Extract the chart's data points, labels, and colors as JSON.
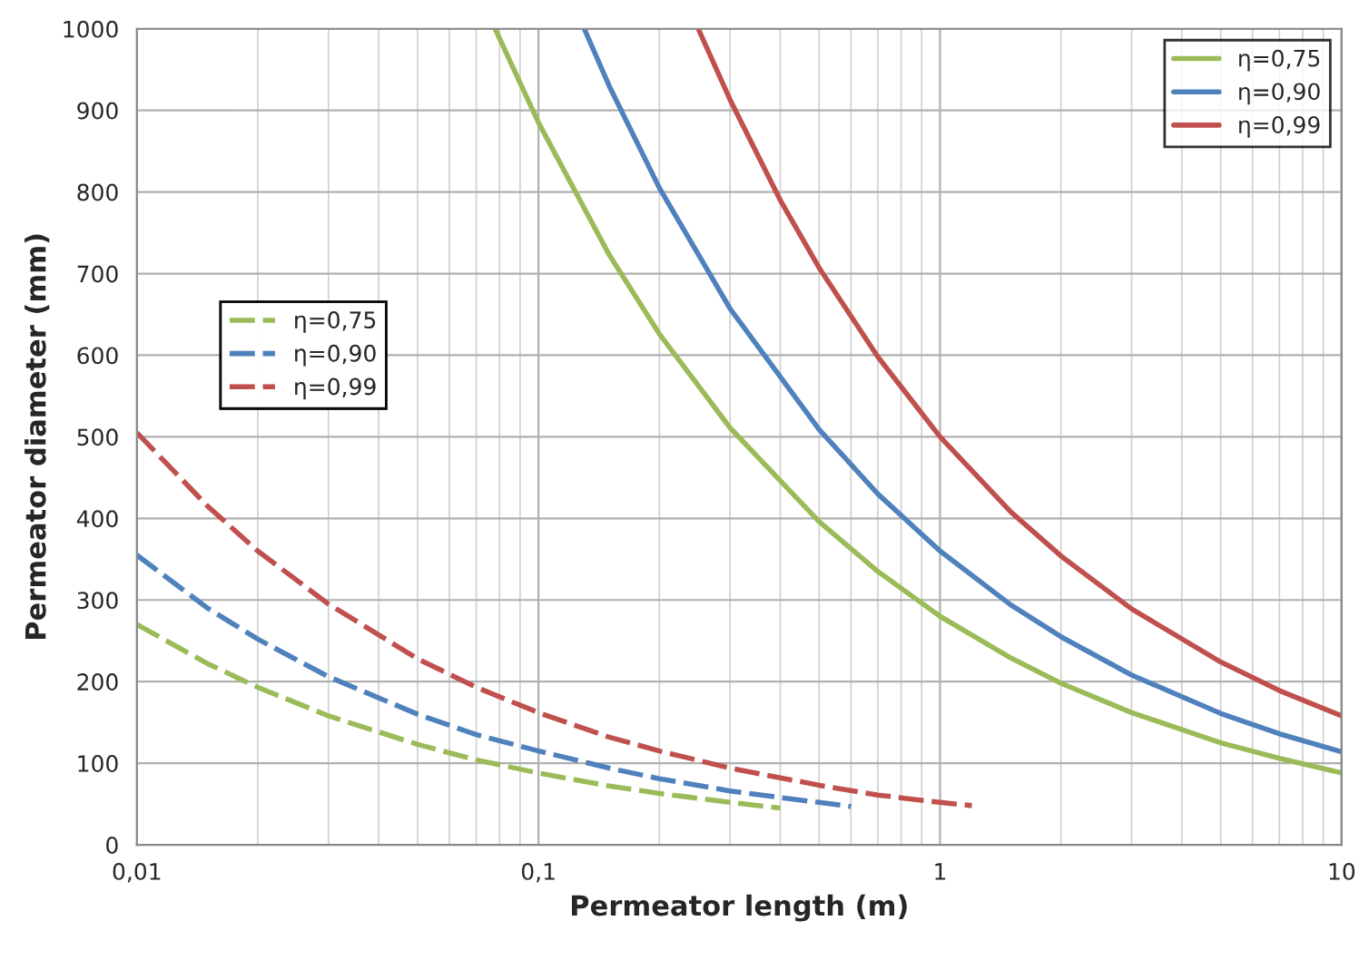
{
  "chart_data": {
    "type": "line",
    "xlabel": "Permeator length (m)",
    "ylabel": "Permeator diameter (mm)",
    "log": "x",
    "xlim": [
      0.01,
      10
    ],
    "ylim": [
      0,
      1000
    ],
    "xticks": [
      {
        "value": 0.01,
        "label": "0,01"
      },
      {
        "value": 0.1,
        "label": "0,1"
      },
      1,
      10
    ],
    "yticks": [
      0,
      100,
      200,
      300,
      400,
      500,
      600,
      700,
      800,
      900,
      1000
    ],
    "grid": true,
    "legend": "top right",
    "marker": "none",
    "series": [
      {
        "name": "η=0,75",
        "color": "#9bbb59",
        "line_style": "solid",
        "x": [
          0.078,
          0.1,
          0.15,
          0.2,
          0.3,
          0.5,
          0.7,
          1,
          1.5,
          2,
          3,
          5,
          7,
          10
        ],
        "values": [
          1000,
          885,
          723,
          626,
          511,
          396,
          335,
          280,
          229,
          198,
          162,
          125,
          106,
          88
        ]
      },
      {
        "name": "η=0,90",
        "color": "#4f81bd",
        "line_style": "solid",
        "x": [
          0.13,
          0.15,
          0.2,
          0.3,
          0.5,
          0.7,
          1,
          1.5,
          2,
          3,
          5,
          7,
          10
        ],
        "values": [
          1000,
          930,
          805,
          657,
          509,
          430,
          360,
          294,
          255,
          208,
          161,
          136,
          114
        ]
      },
      {
        "name": "η=0,99",
        "color": "#c0504d",
        "line_style": "solid",
        "x": [
          0.25,
          0.3,
          0.4,
          0.5,
          0.7,
          1,
          1.5,
          2,
          3,
          5,
          7,
          10
        ],
        "values": [
          1000,
          913,
          790,
          707,
          598,
          500,
          408,
          354,
          289,
          224,
          189,
          158
        ]
      },
      {
        "name": "η=0,75",
        "color": "#9bbb59",
        "line_style": "dashed",
        "x": [
          0.01,
          0.015,
          0.02,
          0.03,
          0.05,
          0.07,
          0.1,
          0.15,
          0.2,
          0.3,
          0.4
        ],
        "values": [
          270,
          222,
          193,
          158,
          123,
          104,
          88,
          72,
          63,
          52,
          45
        ]
      },
      {
        "name": "η=0,90",
        "color": "#4f81bd",
        "line_style": "dashed",
        "x": [
          0.01,
          0.015,
          0.02,
          0.03,
          0.05,
          0.07,
          0.1,
          0.15,
          0.2,
          0.3,
          0.4,
          0.6
        ],
        "values": [
          355,
          290,
          252,
          206,
          160,
          135,
          115,
          94,
          81,
          66,
          58,
          47
        ]
      },
      {
        "name": "η=0,99",
        "color": "#c0504d",
        "line_style": "dashed",
        "x": [
          0.01,
          0.015,
          0.02,
          0.03,
          0.05,
          0.07,
          0.1,
          0.15,
          0.2,
          0.3,
          0.5,
          0.7,
          1,
          1.2
        ],
        "values": [
          505,
          415,
          360,
          295,
          228,
          193,
          162,
          132,
          115,
          94,
          73,
          61,
          52,
          48
        ]
      }
    ]
  }
}
